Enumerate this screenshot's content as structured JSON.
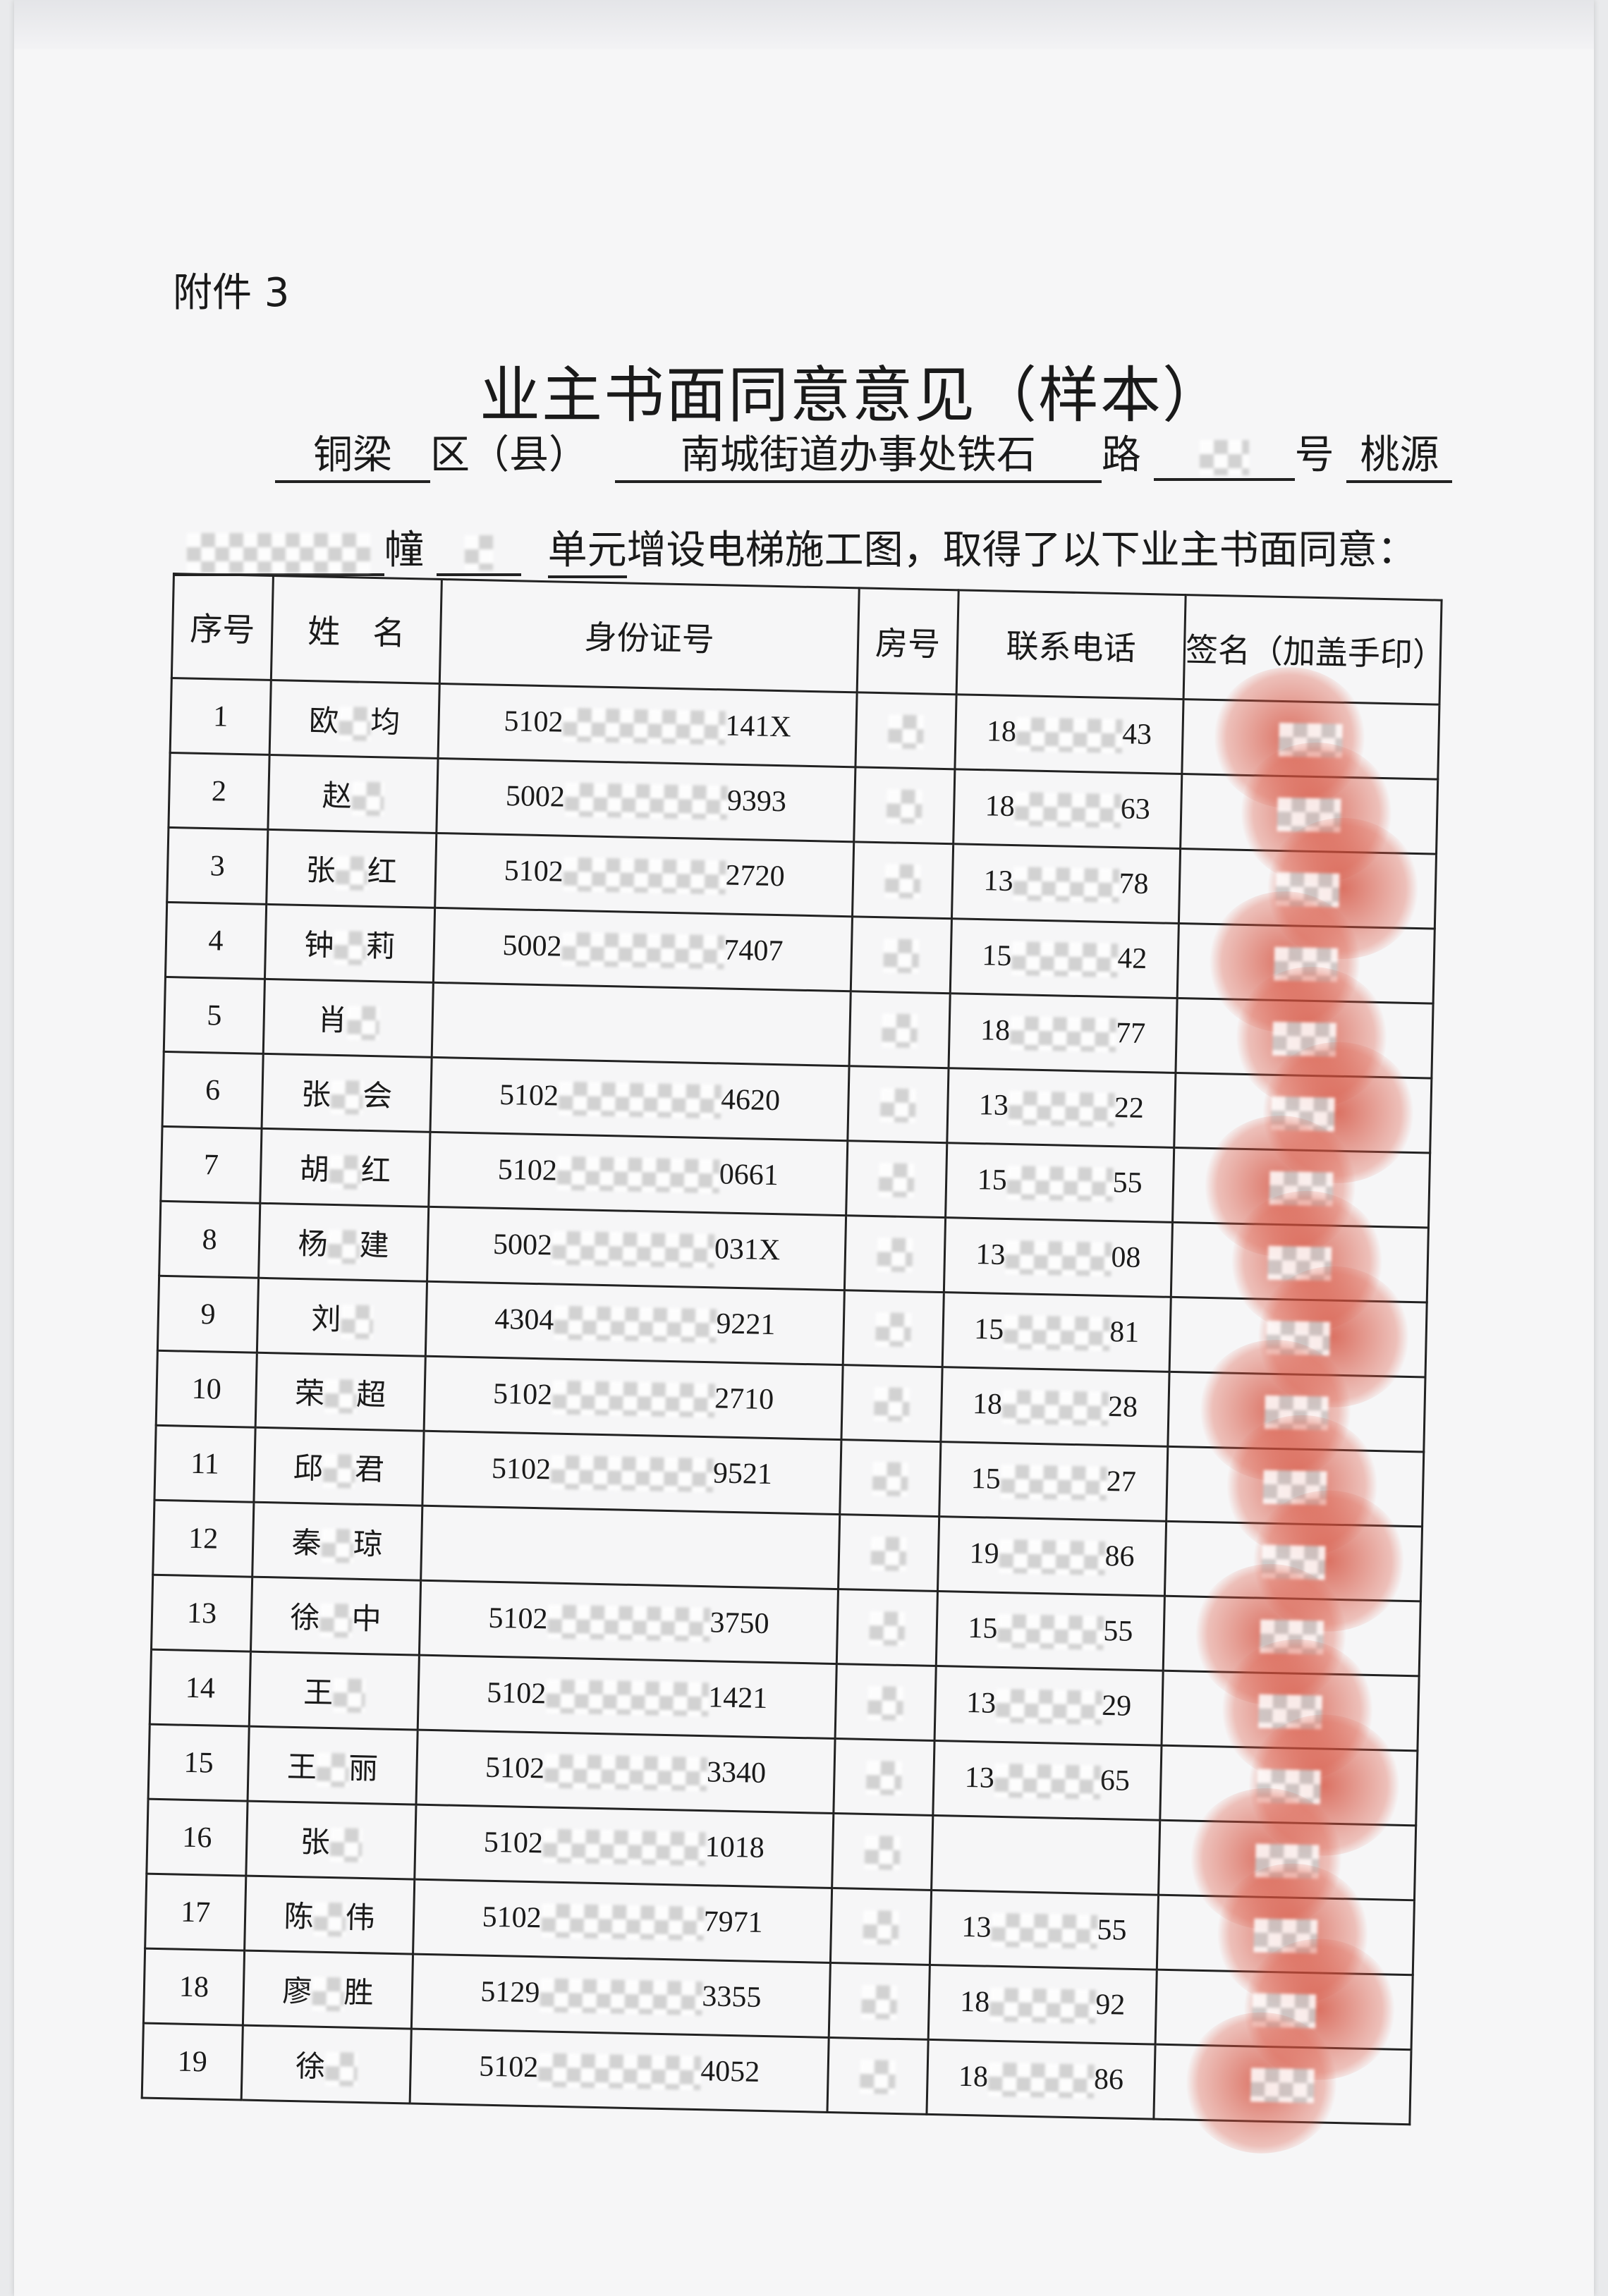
{
  "attachment_label": "附件 3",
  "title": "业主书面同意意见（样本）",
  "intro": {
    "district": "铜梁",
    "district_suffix": "区（县）",
    "street": "南城街道办事处铁石",
    "road_suffix": "路",
    "number_suffix": "号",
    "community": "桃源",
    "building_suffix": "幢",
    "unit_text": "单元",
    "closing": "增设电梯施工图，取得了以下业主书面同意："
  },
  "table": {
    "headers": [
      "序号",
      "姓　名",
      "身份证号",
      "房号",
      "联系电话",
      "签名（加盖手印）"
    ],
    "rows": [
      {
        "no": "1",
        "name": [
          "欧",
          "均"
        ],
        "id": [
          "5102",
          "141X"
        ],
        "phone": [
          "18",
          "43"
        ]
      },
      {
        "no": "2",
        "name": [
          "赵",
          ""
        ],
        "id": [
          "5002",
          "9393"
        ],
        "phone": [
          "18",
          "63"
        ]
      },
      {
        "no": "3",
        "name": [
          "张",
          "红"
        ],
        "id": [
          "5102",
          "2720"
        ],
        "phone": [
          "13",
          "78"
        ]
      },
      {
        "no": "4",
        "name": [
          "钟",
          "莉"
        ],
        "id": [
          "5002",
          "7407"
        ],
        "phone": [
          "15",
          "42"
        ]
      },
      {
        "no": "5",
        "name": [
          "肖",
          ""
        ],
        "id": [
          "",
          ""
        ],
        "phone": [
          "18",
          "77"
        ]
      },
      {
        "no": "6",
        "name": [
          "张",
          "会"
        ],
        "id": [
          "5102",
          "4620"
        ],
        "phone": [
          "13",
          "22"
        ]
      },
      {
        "no": "7",
        "name": [
          "胡",
          "红"
        ],
        "id": [
          "5102",
          "0661"
        ],
        "phone": [
          "15",
          "55"
        ]
      },
      {
        "no": "8",
        "name": [
          "杨",
          "建"
        ],
        "id": [
          "5002",
          "031X"
        ],
        "phone": [
          "13",
          "08"
        ]
      },
      {
        "no": "9",
        "name": [
          "刘",
          ""
        ],
        "id": [
          "4304",
          "9221"
        ],
        "phone": [
          "15",
          "81"
        ]
      },
      {
        "no": "10",
        "name": [
          "荣",
          "超"
        ],
        "id": [
          "5102",
          "2710"
        ],
        "phone": [
          "18",
          "28"
        ]
      },
      {
        "no": "11",
        "name": [
          "邱",
          "君"
        ],
        "id": [
          "5102",
          "9521"
        ],
        "phone": [
          "15",
          "27"
        ]
      },
      {
        "no": "12",
        "name": [
          "秦",
          "琼"
        ],
        "id": [
          "",
          ""
        ],
        "phone": [
          "19",
          "86"
        ]
      },
      {
        "no": "13",
        "name": [
          "徐",
          "中"
        ],
        "id": [
          "5102",
          "3750"
        ],
        "phone": [
          "15",
          "55"
        ]
      },
      {
        "no": "14",
        "name": [
          "王",
          ""
        ],
        "id": [
          "5102",
          "1421"
        ],
        "phone": [
          "13",
          "29"
        ]
      },
      {
        "no": "15",
        "name": [
          "王",
          "丽"
        ],
        "id": [
          "5102",
          "3340"
        ],
        "phone": [
          "13",
          "65"
        ]
      },
      {
        "no": "16",
        "name": [
          "张",
          ""
        ],
        "id": [
          "5102",
          "1018"
        ],
        "phone": [
          "",
          ""
        ]
      },
      {
        "no": "17",
        "name": [
          "陈",
          "伟"
        ],
        "id": [
          "5102",
          "7971"
        ],
        "phone": [
          "13",
          "55"
        ]
      },
      {
        "no": "18",
        "name": [
          "廖",
          "胜"
        ],
        "id": [
          "5129",
          "3355"
        ],
        "phone": [
          "18",
          "92"
        ]
      },
      {
        "no": "19",
        "name": [
          "徐",
          ""
        ],
        "id": [
          "5102",
          "4052"
        ],
        "phone": [
          "18",
          "86"
        ]
      }
    ]
  },
  "colors": {
    "fingerprint": "#d24632",
    "paper": "#f6f6f7",
    "ink": "#1a1a1a"
  }
}
